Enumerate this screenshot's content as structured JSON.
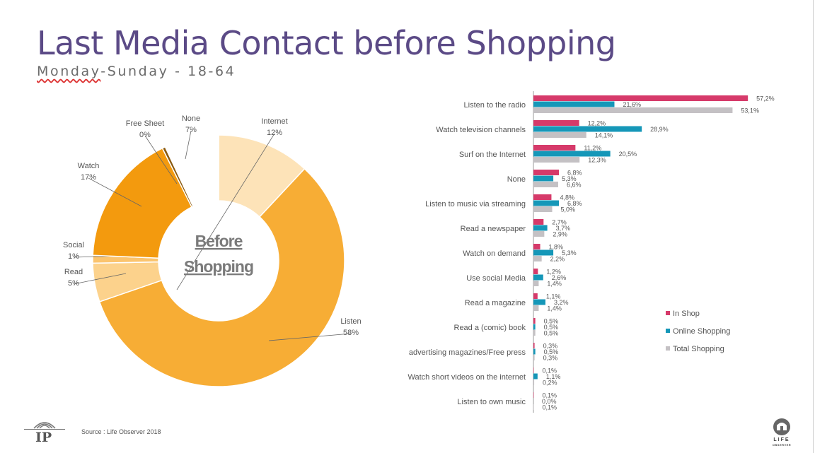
{
  "title": "Last Media Contact before Shopping",
  "subtitle_part1": "Monday",
  "subtitle_part2": "-Sunday - 18-64",
  "source": "Source : Life Observer 2018",
  "logo_left": "IP",
  "logo_right_line1": "LIFE",
  "logo_right_line2": "OBSERVER",
  "chart_data": [
    {
      "type": "pie",
      "center_label_line1": "Before",
      "center_label_line2": "Shopping",
      "slices": [
        {
          "name": "Internet",
          "label": "12%",
          "value": 12,
          "color": "#fde3b8"
        },
        {
          "name": "Listen",
          "label": "58%",
          "value": 58,
          "color": "#f7ad35"
        },
        {
          "name": "Read",
          "label": "5%",
          "value": 5,
          "color": "#fcd28c"
        },
        {
          "name": "Social",
          "label": "1%",
          "value": 1,
          "color": "#fbc46e"
        },
        {
          "name": "Watch",
          "label": "17%",
          "value": 17,
          "color": "#f39a0e"
        },
        {
          "name": "Free Sheet",
          "label": "0%",
          "value": 0.4,
          "color": "#8a5a10"
        },
        {
          "name": "None",
          "label": "7%",
          "value": 7,
          "color": "#ffffff"
        }
      ]
    },
    {
      "type": "bar",
      "orientation": "horizontal",
      "categories": [
        "Listen to the radio",
        "Watch television channels",
        "Surf on the Internet",
        "None",
        "Listen to music via streaming",
        "Read a newspaper",
        "Watch on demand",
        "Use social Media",
        "Read a magazine",
        "Read a (comic) book",
        "advertising magazines/Free press",
        "Watch short videos on the internet",
        "Listen to own music"
      ],
      "series": [
        {
          "name": "In Shop",
          "color": "#d63a6a",
          "values": [
            57.2,
            12.2,
            11.2,
            6.8,
            4.8,
            2.7,
            1.8,
            1.2,
            1.1,
            0.5,
            0.3,
            0.1,
            0.1
          ],
          "labels": [
            "57,2%",
            "12,2%",
            "11,2%",
            "6,8%",
            "4,8%",
            "2,7%",
            "1,8%",
            "1,2%",
            "1,1%",
            "0,5%",
            "0,3%",
            "0,1%",
            "0,1%"
          ]
        },
        {
          "name": "Online Shopping",
          "color": "#1597b8",
          "values": [
            21.6,
            28.9,
            20.5,
            5.3,
            6.8,
            3.7,
            5.3,
            2.6,
            3.2,
            0.5,
            0.5,
            1.1,
            0.0
          ],
          "labels": [
            "21,6%",
            "28,9%",
            "20,5%",
            "5,3%",
            "6,8%",
            "3,7%",
            "5,3%",
            "2,6%",
            "3,2%",
            "0,5%",
            "0,5%",
            "1,1%",
            "0,0%"
          ]
        },
        {
          "name": "Total Shopping",
          "color": "#c4c1c4",
          "values": [
            53.1,
            14.1,
            12.3,
            6.6,
            5.0,
            2.9,
            2.2,
            1.4,
            1.4,
            0.5,
            0.3,
            0.2,
            0.1
          ],
          "labels": [
            "53,1%",
            "14,1%",
            "12,3%",
            "6,6%",
            "5,0%",
            "2,9%",
            "2,2%",
            "1,4%",
            "1,4%",
            "0,5%",
            "0,3%",
            "0,2%",
            "0,1%"
          ]
        }
      ],
      "legend_position": "right",
      "xlim": [
        0,
        60
      ]
    }
  ]
}
